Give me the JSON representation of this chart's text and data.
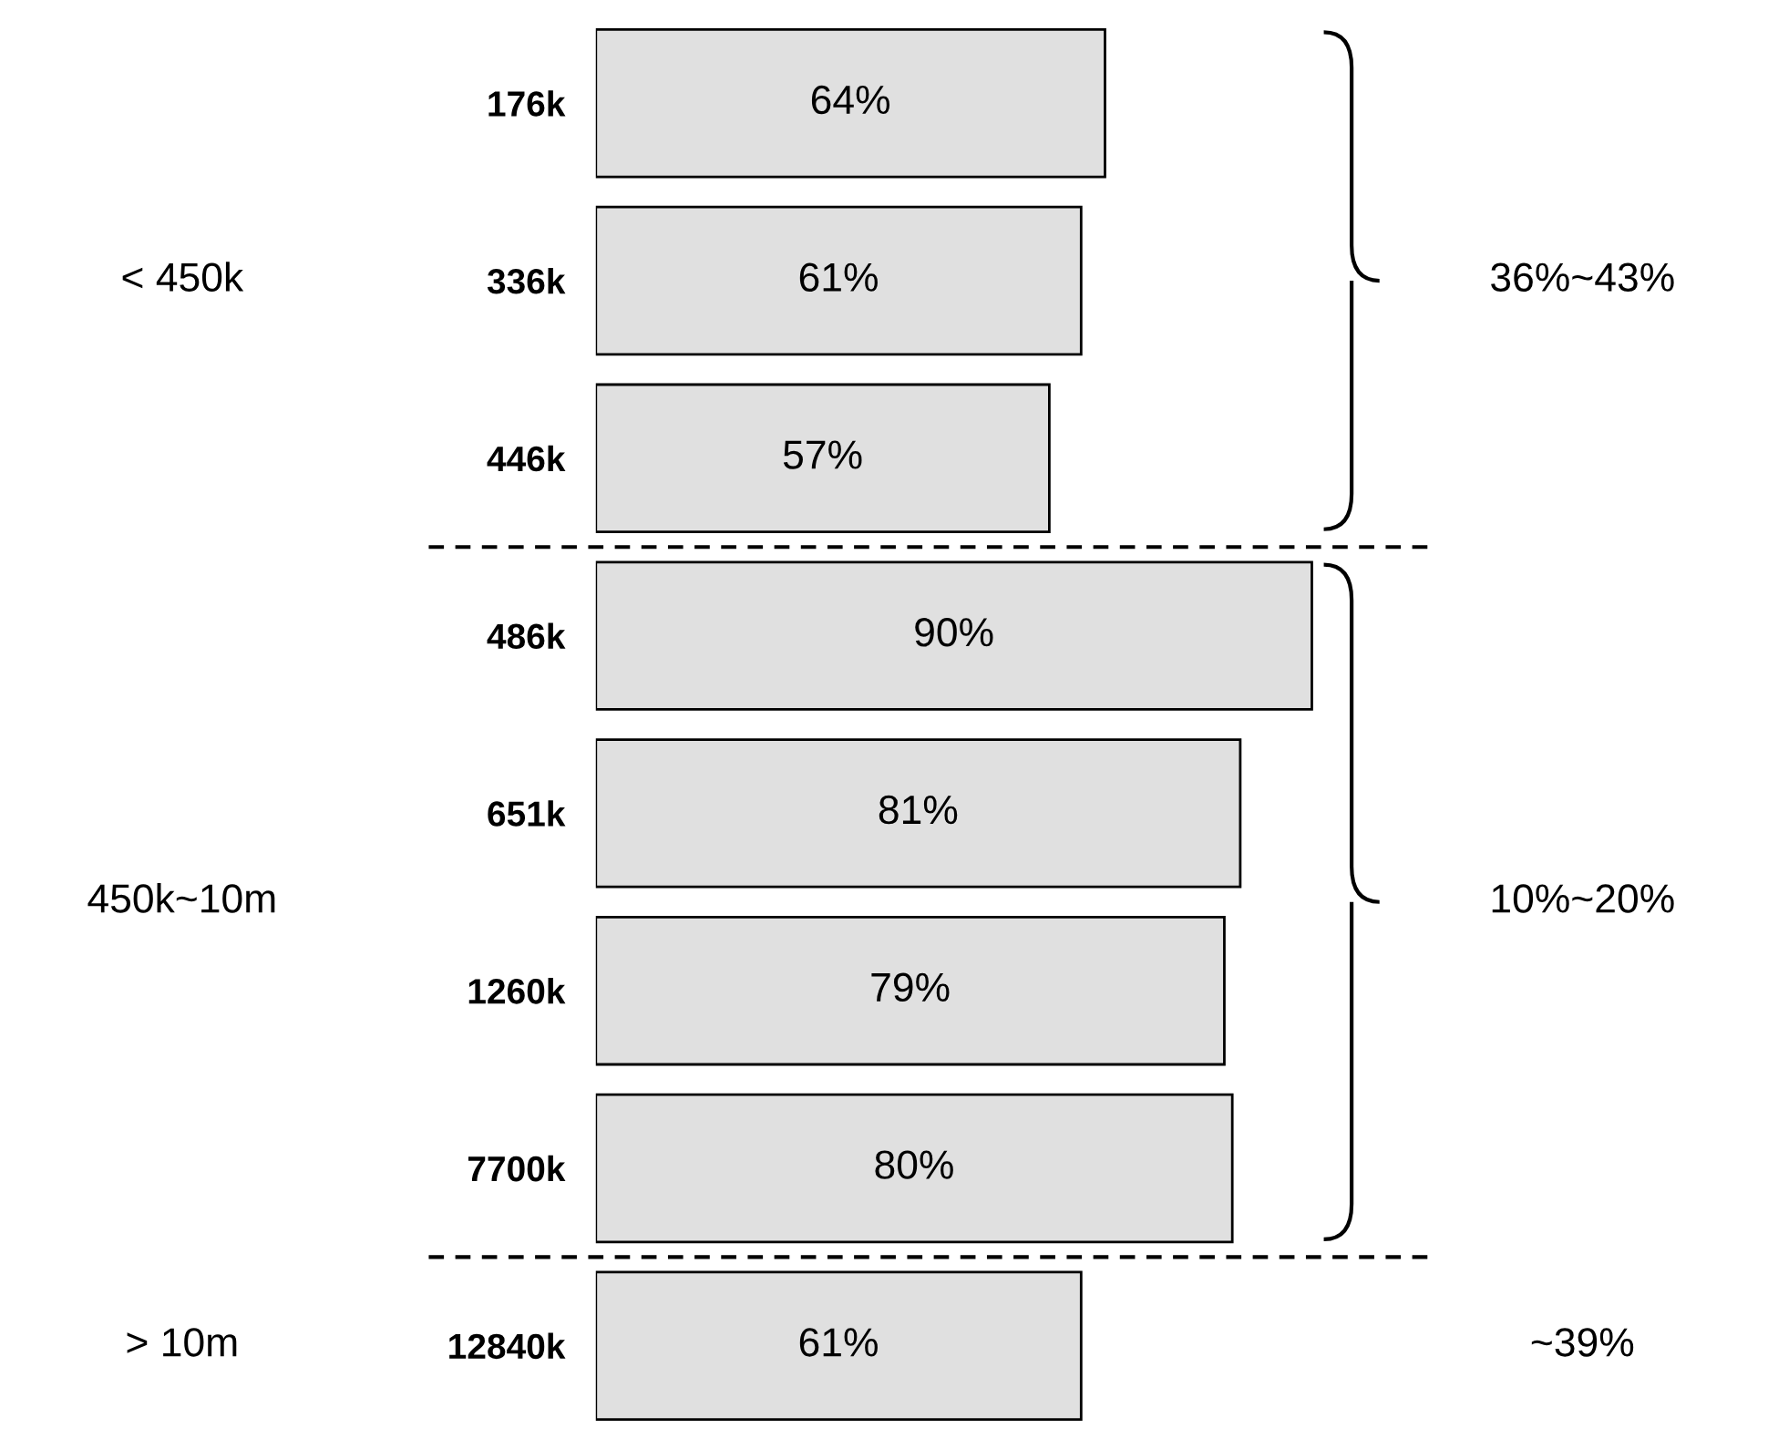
{
  "chart_data": {
    "type": "bar",
    "orientation": "horizontal",
    "categories": [
      "176k",
      "336k",
      "446k",
      "486k",
      "651k",
      "1260k",
      "7700k",
      "12840k"
    ],
    "values": [
      64,
      61,
      57,
      90,
      81,
      79,
      80,
      61
    ],
    "value_labels": [
      "64%",
      "61%",
      "57%",
      "90%",
      "81%",
      "79%",
      "80%",
      "61%"
    ],
    "color": "#e0e0e0",
    "annotations": [
      "< 450k",
      "450k~10m",
      "> 10m",
      "36%~43%",
      "10%~20%",
      "~39%"
    ],
    "grid": false
  }
}
